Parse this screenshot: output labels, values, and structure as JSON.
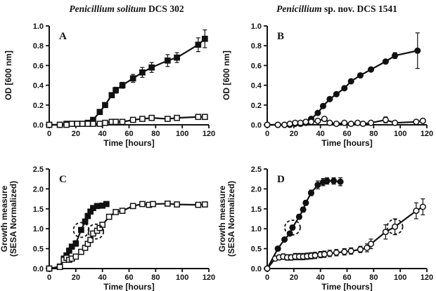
{
  "figure": {
    "left_title": {
      "italic": "Penicillium solitum",
      "rest": " DCS 302"
    },
    "right_title": {
      "italic": "Penicillium",
      "rest": " sp. nov. DCS 1541"
    }
  },
  "chart_data": [
    {
      "label": "A",
      "type": "line",
      "xlabel": "Time [hours]",
      "ylabel_lines": [
        "OD [600 nm]"
      ],
      "xlim": [
        0,
        120
      ],
      "ylim": [
        0,
        1.0
      ],
      "xticks": [
        0,
        20,
        40,
        60,
        80,
        100,
        120
      ],
      "yticks": [
        "0.0",
        "0.2",
        "0.4",
        "0.6",
        "0.8",
        "1.0"
      ],
      "series": [
        {
          "name": "filled-square",
          "marker": "square",
          "fill": "filled",
          "x": [
            0,
            8,
            13,
            17,
            21,
            25,
            29,
            33,
            38,
            42,
            47,
            50,
            55,
            63,
            70,
            77,
            89,
            96,
            112,
            117
          ],
          "y": [
            0,
            0,
            0.01,
            0.01,
            0.01,
            0.01,
            0.02,
            0.05,
            0.13,
            0.2,
            0.3,
            0.35,
            0.4,
            0.47,
            0.53,
            0.58,
            0.65,
            0.68,
            0.81,
            0.87
          ],
          "yerr": [
            0,
            0,
            0,
            0,
            0,
            0,
            0,
            0.01,
            0.02,
            0.02,
            0.02,
            0.03,
            0.03,
            0.04,
            0.05,
            0.05,
            0.06,
            0.05,
            0.07,
            0.09
          ]
        },
        {
          "name": "open-square",
          "marker": "square",
          "fill": "open",
          "x": [
            0,
            8,
            13,
            17,
            21,
            25,
            29,
            33,
            38,
            42,
            47,
            50,
            55,
            63,
            70,
            77,
            89,
            96,
            112,
            117
          ],
          "y": [
            0,
            0,
            0,
            0.01,
            0.01,
            0.01,
            0.01,
            0.01,
            0.01,
            0.02,
            0.03,
            0.03,
            0.03,
            0.05,
            0.06,
            0.07,
            0.06,
            0.07,
            0.08,
            0.08
          ],
          "yerr": [
            0,
            0,
            0,
            0,
            0,
            0,
            0,
            0,
            0,
            0,
            0,
            0,
            0,
            0,
            0,
            0,
            0,
            0,
            0,
            0
          ]
        }
      ],
      "annotations": []
    },
    {
      "label": "B",
      "type": "line",
      "xlabel": "Time [hours]",
      "ylabel_lines": [
        "OD [600 nm]"
      ],
      "xlim": [
        0,
        120
      ],
      "ylim": [
        0,
        1.0
      ],
      "xticks": [
        0,
        20,
        40,
        60,
        80,
        100,
        120
      ],
      "yticks": [
        "0.0",
        "0.2",
        "0.4",
        "0.6",
        "0.8",
        "1.0"
      ],
      "series": [
        {
          "name": "filled-circle",
          "marker": "circle",
          "fill": "filled",
          "x": [
            0,
            8,
            13,
            17,
            21,
            25,
            29,
            33,
            38,
            42,
            47,
            52,
            58,
            63,
            70,
            78,
            89,
            96,
            113
          ],
          "y": [
            0,
            0,
            0,
            0,
            0.01,
            0.01,
            0.02,
            0.06,
            0.12,
            0.19,
            0.26,
            0.31,
            0.37,
            0.44,
            0.5,
            0.56,
            0.64,
            0.7,
            0.75
          ],
          "yerr": [
            0,
            0,
            0,
            0,
            0,
            0,
            0,
            0,
            0,
            0,
            0,
            0,
            0,
            0,
            0,
            0.02,
            0.02,
            0.03,
            0.18
          ]
        },
        {
          "name": "open-circle",
          "marker": "circle",
          "fill": "open",
          "x": [
            0,
            8,
            13,
            17,
            21,
            25,
            29,
            33,
            38,
            43,
            47,
            52,
            58,
            63,
            68,
            72,
            78,
            89,
            96,
            112,
            117
          ],
          "y": [
            0,
            0,
            0,
            0.01,
            0.02,
            0.02,
            0.03,
            0.03,
            0.04,
            0.06,
            0.02,
            0.01,
            0.02,
            0.01,
            0.02,
            0.01,
            0.02,
            0.05,
            0.02,
            0.03,
            0.04
          ],
          "yerr": [
            0,
            0,
            0,
            0,
            0,
            0,
            0,
            0,
            0,
            0,
            0,
            0,
            0,
            0,
            0,
            0,
            0,
            0.03,
            0,
            0,
            0
          ]
        }
      ],
      "annotations": []
    },
    {
      "label": "C",
      "type": "line",
      "xlabel": "Time [hours]",
      "ylabel_lines": [
        "Growth measure",
        "(SESA Normalized)"
      ],
      "xlim": [
        0,
        120
      ],
      "ylim": [
        0,
        2.5
      ],
      "xticks": [
        0,
        20,
        40,
        60,
        80,
        100,
        120
      ],
      "yticks": [
        "0.0",
        "0.5",
        "1.0",
        "1.5",
        "2.0",
        "2.5"
      ],
      "series": [
        {
          "name": "filled-square",
          "marker": "square",
          "fill": "filled",
          "x": [
            0,
            8,
            11,
            13,
            15,
            17,
            20,
            24,
            27,
            29,
            31,
            33,
            36,
            40,
            43
          ],
          "y": [
            0,
            0.05,
            0.25,
            0.33,
            0.45,
            0.55,
            0.63,
            0.97,
            1.18,
            1.32,
            1.43,
            1.52,
            1.57,
            1.58,
            1.62
          ],
          "yerr": [
            0,
            0,
            0,
            0,
            0.05,
            0.05,
            0.07,
            0.05,
            0,
            0,
            0,
            0,
            0.04,
            0.04,
            0.04
          ]
        },
        {
          "name": "open-square",
          "marker": "square",
          "fill": "open",
          "x": [
            0,
            8,
            11,
            13,
            15,
            17,
            20,
            24,
            27,
            29,
            31,
            33,
            36,
            38,
            40,
            45,
            50,
            55,
            63,
            70,
            75,
            78,
            89,
            96,
            112,
            117
          ],
          "y": [
            0,
            0.04,
            0.22,
            0.27,
            0.22,
            0.25,
            0.3,
            0.42,
            0.52,
            0.62,
            0.72,
            0.88,
            0.95,
            1.02,
            1.1,
            1.3,
            1.42,
            1.45,
            1.57,
            1.62,
            1.6,
            1.62,
            1.63,
            1.61,
            1.6,
            1.61
          ],
          "yerr": [
            0,
            0,
            0,
            0,
            0,
            0,
            0,
            0,
            0,
            0,
            0,
            0,
            0.04,
            0,
            0,
            0,
            0,
            0,
            0,
            0.05,
            0.05,
            0.05,
            0.05,
            0.05,
            0.05,
            0.05
          ]
        }
      ],
      "annotations": [
        {
          "x": 24,
          "y": 0.97
        },
        {
          "x": 35,
          "y": 0.93
        }
      ]
    },
    {
      "label": "D",
      "type": "line",
      "xlabel": "Time [hours]",
      "ylabel_lines": [
        "Growth measure",
        "(SESA Normalized)"
      ],
      "xlim": [
        0,
        120
      ],
      "ylim": [
        0,
        2.5
      ],
      "xticks": [
        0,
        20,
        40,
        60,
        80,
        100,
        120
      ],
      "yticks": [
        "0.0",
        "0.5",
        "1.0",
        "1.5",
        "2.0",
        "2.5"
      ],
      "series": [
        {
          "name": "filled-circle",
          "marker": "circle",
          "fill": "filled",
          "x": [
            0,
            8,
            13,
            17,
            19,
            24,
            27,
            29,
            33,
            38,
            42,
            45,
            50,
            55
          ],
          "y": [
            0,
            0.5,
            0.73,
            0.88,
            1.03,
            1.3,
            1.48,
            1.65,
            1.9,
            2.1,
            2.17,
            2.2,
            2.2,
            2.18
          ],
          "yerr": [
            0,
            0.05,
            0.05,
            0.05,
            0.06,
            0.06,
            0.06,
            0.06,
            0.07,
            0.1,
            0.09,
            0.08,
            0.08,
            0.1
          ]
        },
        {
          "name": "open-circle",
          "marker": "circle",
          "fill": "open",
          "x": [
            0,
            6,
            9,
            12,
            15,
            18,
            21,
            24,
            27,
            30,
            33,
            36,
            40,
            43,
            47,
            52,
            58,
            63,
            70,
            75,
            78,
            89,
            96,
            112,
            117
          ],
          "y": [
            0,
            0.25,
            0.28,
            0.3,
            0.28,
            0.28,
            0.3,
            0.3,
            0.3,
            0.31,
            0.32,
            0.33,
            0.35,
            0.36,
            0.38,
            0.4,
            0.42,
            0.44,
            0.48,
            0.52,
            0.62,
            0.92,
            1.05,
            1.45,
            1.55
          ],
          "yerr": [
            0,
            0.05,
            0.06,
            0.07,
            0.07,
            0.07,
            0.08,
            0.08,
            0.08,
            0.08,
            0.08,
            0.08,
            0.08,
            0.08,
            0.08,
            0.08,
            0.08,
            0.08,
            0.08,
            0.1,
            0.12,
            0.18,
            0.2,
            0.2,
            0.2
          ]
        }
      ],
      "annotations": [
        {
          "x": 19,
          "y": 1.03
        },
        {
          "x": 96,
          "y": 1.05
        }
      ]
    }
  ]
}
